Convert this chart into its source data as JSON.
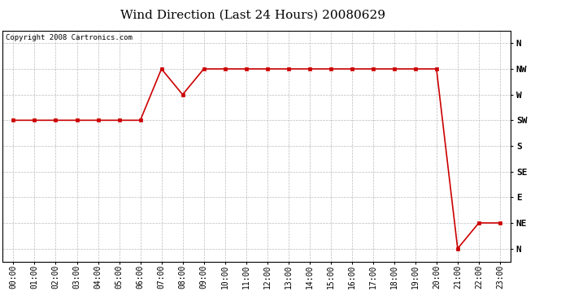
{
  "title": "Wind Direction (Last 24 Hours) 20080629",
  "copyright_text": "Copyright 2008 Cartronics.com",
  "x_labels": [
    "00:00",
    "01:00",
    "02:00",
    "03:00",
    "04:00",
    "05:00",
    "06:00",
    "07:00",
    "08:00",
    "09:00",
    "10:00",
    "11:00",
    "12:00",
    "13:00",
    "14:00",
    "15:00",
    "16:00",
    "17:00",
    "18:00",
    "19:00",
    "20:00",
    "21:00",
    "22:00",
    "23:00"
  ],
  "y_ticks_labels": [
    "N",
    "NE",
    "E",
    "SE",
    "S",
    "SW",
    "W",
    "NW",
    "N"
  ],
  "y_ticks_values": [
    0,
    1,
    2,
    3,
    4,
    5,
    6,
    7,
    8
  ],
  "data_hours": [
    0,
    1,
    2,
    3,
    4,
    5,
    6,
    7,
    8,
    9,
    10,
    11,
    12,
    13,
    14,
    15,
    16,
    17,
    18,
    19,
    20,
    21,
    22,
    23
  ],
  "data_values": [
    5,
    5,
    5,
    5,
    5,
    5,
    5,
    7,
    6,
    7,
    7,
    7,
    7,
    7,
    7,
    7,
    7,
    7,
    7,
    7,
    7,
    0,
    1,
    1
  ],
  "line_color": "#cc0000",
  "marker": "s",
  "marker_size": 3,
  "bg_color": "#ffffff",
  "plot_bg_color": "#ffffff",
  "grid_color": "#bbbbbb",
  "title_fontsize": 11,
  "copyright_fontsize": 6.5,
  "axis_tick_fontsize": 7,
  "y_tick_fontsize": 8,
  "ylim": [
    -0.5,
    8.5
  ],
  "xlim": [
    -0.5,
    23.5
  ]
}
